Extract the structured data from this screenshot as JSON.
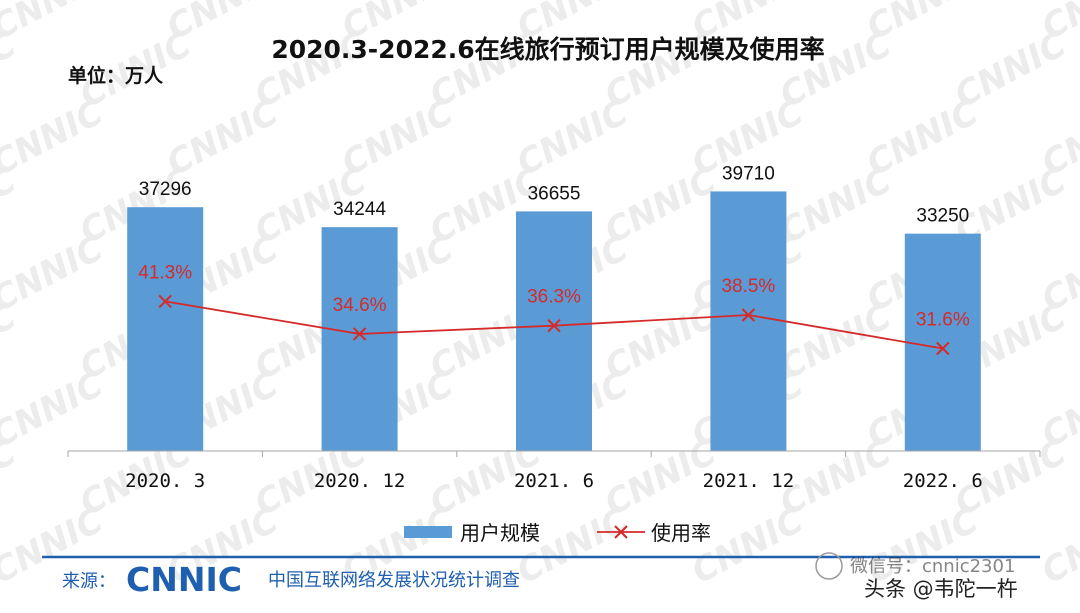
{
  "colors": {
    "bar": "#5b9bd5",
    "line": "#d42a2a",
    "brand": "#1f5fb0",
    "watermark": "#ececec"
  },
  "watermark": "CNNIC",
  "header": {
    "title": "2020.3-2022.6在线旅行预订用户规模及使用率",
    "unit": "单位：万人"
  },
  "chart_data": {
    "type": "bar",
    "categories": [
      "2020. 3",
      "2020. 12",
      "2021. 6",
      "2021. 12",
      "2022. 6"
    ],
    "series": [
      {
        "name": "用户规模",
        "type": "bar",
        "values": [
          37296,
          34244,
          36655,
          39710,
          33250
        ],
        "labels": [
          "37296",
          "34244",
          "36655",
          "39710",
          "33250"
        ]
      },
      {
        "name": "使用率",
        "type": "line",
        "values": [
          41.3,
          34.6,
          36.3,
          38.5,
          31.6
        ],
        "labels": [
          "41.3%",
          "34.6%",
          "36.3%",
          "38.5%",
          "31.6%"
        ]
      }
    ],
    "legend_position": "bottom",
    "grid": false
  },
  "footer": {
    "source_label": "来源：",
    "logo": "CNNIC",
    "org": "中国互联网络发展状况统计调查"
  },
  "overlay": {
    "wechat": "微信号：cnnic2301",
    "toutiao": "头条 @韦陀一杵"
  }
}
